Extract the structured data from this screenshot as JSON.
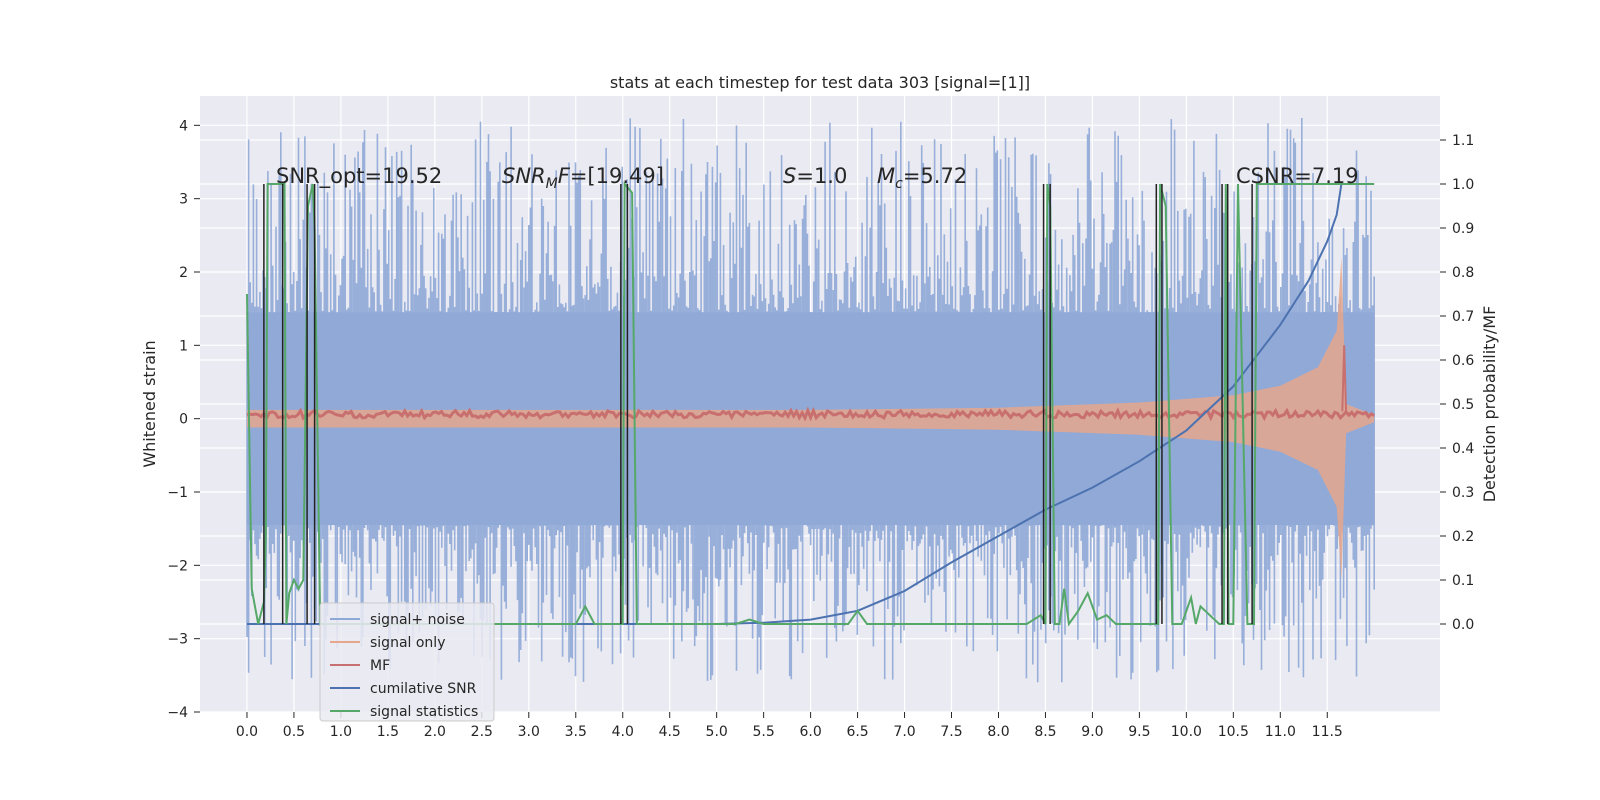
{
  "chart_data": {
    "type": "line",
    "title": "stats at each timestep for test data 303 [signal=[1]]",
    "xlabel": "",
    "ylabel": "Whitened strain",
    "ylabel_right": "Detection probability/MF",
    "xlim": [
      -0.5,
      12.7
    ],
    "ylim": [
      -4,
      4.4
    ],
    "ylim_right": [
      -0.2,
      1.2
    ],
    "xticks": [
      "0.0",
      "0.5",
      "1.0",
      "1.5",
      "2.0",
      "2.5",
      "3.0",
      "3.5",
      "4.0",
      "4.5",
      "5.0",
      "5.5",
      "6.0",
      "6.5",
      "7.0",
      "7.5",
      "8.0",
      "8.5",
      "9.0",
      "9.5",
      "10.0",
      "10.5",
      "11.0",
      "11.5"
    ],
    "yticks_left": [
      "4",
      "3",
      "2",
      "1",
      "0",
      "−1",
      "−2",
      "−3",
      "−4"
    ],
    "yticks_right": [
      "1.1",
      "1.0",
      "0.9",
      "0.8",
      "0.7",
      "0.6",
      "0.5",
      "0.4",
      "0.3",
      "0.2",
      "0.1",
      "0.0"
    ],
    "grid": true,
    "legend_position": "lower-left",
    "annotations": {
      "snr_opt": "SNR_opt=19.52",
      "snr_mf": "=[19.49]",
      "s": "=1.0",
      "mc": "=5.72",
      "csnr": "CSNR=7.19"
    },
    "series": [
      {
        "name": "signal+ noise",
        "color": "#8fa8d6",
        "x_range": [
          0,
          12
        ],
        "envelope_abs": 1.45,
        "spike_max": 4.1,
        "spike_min": -3.6
      },
      {
        "name": "signal only",
        "color": "#e6a78c",
        "envelope": {
          "x": [
            0,
            6.0,
            8.0,
            9.5,
            10.5,
            11.0,
            11.4,
            11.6,
            11.65,
            11.7,
            12.0
          ],
          "amp": [
            0.12,
            0.12,
            0.15,
            0.22,
            0.32,
            0.45,
            0.7,
            1.2,
            2.2,
            0.2,
            0.05
          ]
        }
      },
      {
        "name": "MF",
        "color": "#c87070",
        "level": 0.06,
        "band": 0.05
      },
      {
        "name": "cumilative SNR",
        "color": "#4c72b0",
        "axis": "right",
        "x": [
          0,
          5.0,
          5.5,
          6.0,
          6.5,
          7.0,
          7.5,
          8.0,
          8.5,
          9.0,
          9.5,
          10.0,
          10.5,
          11.0,
          11.3,
          11.5,
          11.6,
          11.65
        ],
        "y": [
          0,
          0,
          0.003,
          0.01,
          0.03,
          0.075,
          0.14,
          0.2,
          0.26,
          0.31,
          0.37,
          0.44,
          0.54,
          0.68,
          0.78,
          0.87,
          0.93,
          1.0
        ]
      },
      {
        "name": "signal statistics",
        "color": "#55a868",
        "axis": "right",
        "x": [
          0,
          0.05,
          0.12,
          0.18,
          0.2,
          0.22,
          0.4,
          0.42,
          0.45,
          0.5,
          0.55,
          0.6,
          0.65,
          0.7,
          0.72,
          0.78,
          0.85,
          0.9,
          2.4,
          2.5,
          3.3,
          3.5,
          3.6,
          3.7,
          3.9,
          4.0,
          4.02,
          4.1,
          4.15,
          4.2,
          4.3,
          5.2,
          5.35,
          5.5,
          6.4,
          6.5,
          6.6,
          7.0,
          8.2,
          8.3,
          8.45,
          8.5,
          8.52,
          8.55,
          8.6,
          8.65,
          8.7,
          8.75,
          8.85,
          8.95,
          9.05,
          9.15,
          9.25,
          9.35,
          9.65,
          9.7,
          9.72,
          9.78,
          9.85,
          9.95,
          10.05,
          10.1,
          10.15,
          10.25,
          10.35,
          10.4,
          10.42,
          10.45,
          10.5,
          10.55,
          10.65,
          10.72,
          10.75,
          10.8,
          12.0
        ],
        "y": [
          0.75,
          0.08,
          0.0,
          0.05,
          0.2,
          1.0,
          1.0,
          0.0,
          0.07,
          0.1,
          0.08,
          0.1,
          0.95,
          1.0,
          0.9,
          0.0,
          0.0,
          0.0,
          0.0,
          0.0,
          0.0,
          0.0,
          0.04,
          0.0,
          0.0,
          0.0,
          1.0,
          0.98,
          0.0,
          0.0,
          0.0,
          0.0,
          0.01,
          0.0,
          0.0,
          0.03,
          0.0,
          0.0,
          0.0,
          0.0,
          0.02,
          0.0,
          1.0,
          0.95,
          0.0,
          0.0,
          0.08,
          0.0,
          0.03,
          0.07,
          0.01,
          0.02,
          0.0,
          0.0,
          0.0,
          0.0,
          1.0,
          0.95,
          0.0,
          0.0,
          0.06,
          0.0,
          0.04,
          0.02,
          0.0,
          0.0,
          1.0,
          0.0,
          0.0,
          1.0,
          0.0,
          0.0,
          1.0,
          1.0,
          1.0
        ]
      }
    ],
    "detection_markers": [
      0.18,
      0.38,
      0.64,
      0.72,
      3.98,
      4.05,
      8.48,
      8.55,
      9.68,
      9.74,
      10.38,
      10.44,
      10.7
    ]
  }
}
